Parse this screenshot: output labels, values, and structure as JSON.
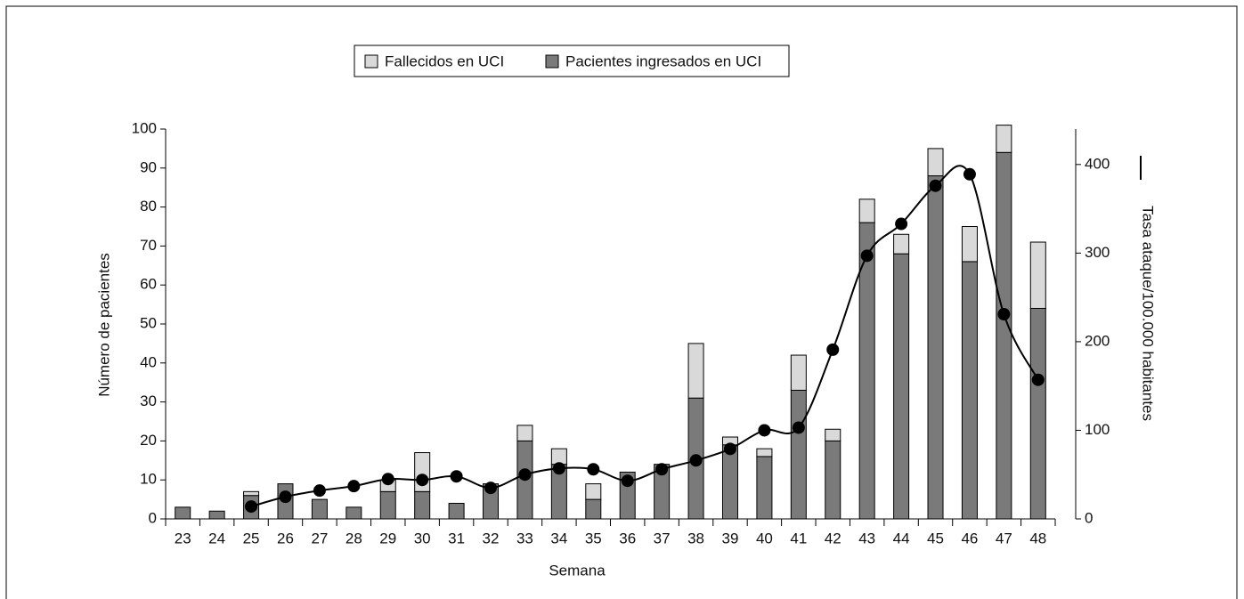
{
  "chart_data": {
    "type": "bar",
    "stacked": true,
    "xlabel": "Semana",
    "ylabel": "Número de pacientes",
    "categories": [
      "23",
      "24",
      "25",
      "26",
      "27",
      "28",
      "29",
      "30",
      "31",
      "32",
      "33",
      "34",
      "35",
      "36",
      "37",
      "38",
      "39",
      "40",
      "41",
      "42",
      "43",
      "44",
      "45",
      "46",
      "47",
      "48"
    ],
    "series": [
      {
        "name": "Fallecidos en UCI",
        "color": "#d9d9d9",
        "values": [
          0,
          0,
          1,
          0,
          0,
          0,
          3,
          10,
          0,
          0,
          4,
          4,
          4,
          0,
          0,
          14,
          2,
          2,
          9,
          3,
          6,
          5,
          7,
          9,
          7,
          17
        ]
      },
      {
        "name": "Pacientes ingresados en UCI",
        "color": "#7a7a7a",
        "values": [
          3,
          2,
          6,
          9,
          5,
          3,
          7,
          7,
          4,
          9,
          20,
          14,
          5,
          12,
          14,
          31,
          19,
          16,
          33,
          20,
          76,
          68,
          88,
          66,
          94,
          54
        ]
      },
      {
        "name": "Tasa ataque/100.000 habitantes",
        "type": "line",
        "axis": "y2",
        "color": "#000000",
        "values": [
          null,
          null,
          14,
          25,
          32,
          37,
          45,
          44,
          48,
          35,
          50,
          57,
          56,
          43,
          56,
          66,
          79,
          100,
          103,
          191,
          297,
          333,
          376,
          389,
          231,
          157
        ]
      }
    ],
    "ylim": [
      0,
      100
    ],
    "yticks": [
      0,
      10,
      20,
      30,
      40,
      50,
      60,
      70,
      80,
      90,
      100
    ],
    "y2lim": [
      0,
      440
    ],
    "y2ticks": [
      0,
      100,
      200,
      300,
      400
    ],
    "legend": "top"
  }
}
